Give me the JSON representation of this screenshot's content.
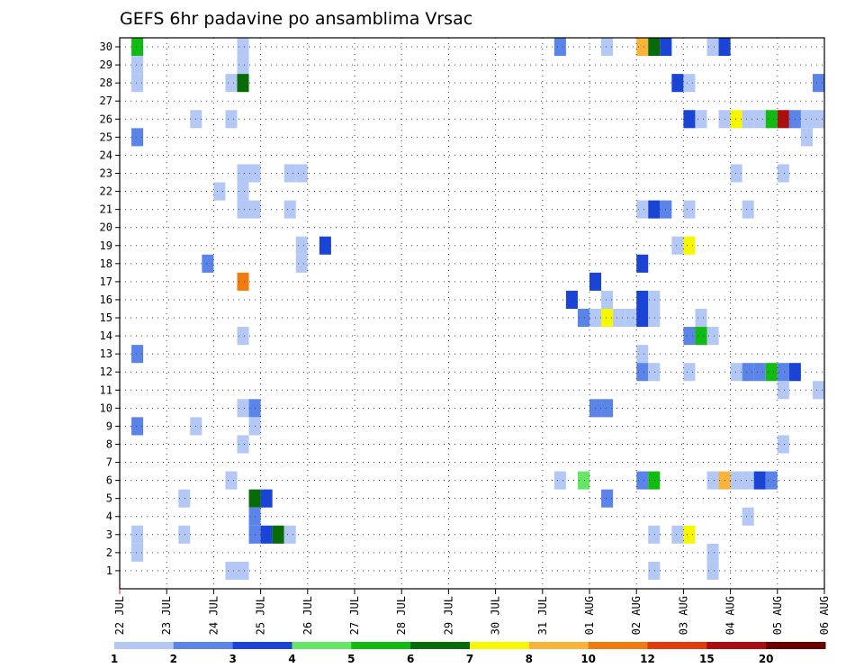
{
  "chart_data": {
    "type": "heatmap",
    "title": "GEFS 6hr padavine po ansamblima Vrsac",
    "xlabel": "",
    "ylabel": "",
    "x_tick_labels": [
      "22 JUL",
      "23 JUL",
      "24 JUL",
      "25 JUL",
      "26 JUL",
      "27 JUL",
      "28 JUL",
      "29 JUL",
      "30 JUL",
      "31 JUL",
      "01 AUG",
      "02 AUG",
      "03 AUG",
      "04 AUG",
      "05 AUG",
      "06 AUG"
    ],
    "x_steps_per_day": 4,
    "x_steps_total": 60,
    "y_tick_labels": [
      "1",
      "2",
      "3",
      "4",
      "5",
      "6",
      "7",
      "8",
      "9",
      "10",
      "11",
      "12",
      "13",
      "14",
      "15",
      "16",
      "17",
      "18",
      "19",
      "20",
      "21",
      "22",
      "23",
      "24",
      "25",
      "26",
      "27",
      "28",
      "29",
      "30"
    ],
    "ylim": [
      0.5,
      30.5
    ],
    "grid": true,
    "colorbar": {
      "labels": [
        "1",
        "2",
        "3",
        "4",
        "5",
        "6",
        "7",
        "8",
        "10",
        "12",
        "15",
        "20"
      ],
      "colors": [
        "#b3c8f5",
        "#5b84e8",
        "#1a44d6",
        "#66e666",
        "#11bb11",
        "#076b07",
        "#f7f700",
        "#f8b43a",
        "#f07c10",
        "#e23a0a",
        "#aa0e0e",
        "#6a0000"
      ]
    },
    "cells": [
      [
        2,
        30,
        5
      ],
      [
        2,
        29,
        1
      ],
      [
        2,
        28,
        1
      ],
      [
        2,
        25,
        2
      ],
      [
        2,
        13,
        2
      ],
      [
        2,
        9,
        2
      ],
      [
        2,
        3,
        1
      ],
      [
        2,
        2,
        1
      ],
      [
        6,
        5,
        1
      ],
      [
        6,
        3,
        1
      ],
      [
        7,
        26,
        1
      ],
      [
        7,
        9,
        1
      ],
      [
        8,
        18,
        2
      ],
      [
        9,
        22,
        1
      ],
      [
        10,
        28,
        1
      ],
      [
        10,
        26,
        1
      ],
      [
        10,
        6,
        1
      ],
      [
        10,
        1,
        1
      ],
      [
        11,
        30,
        1
      ],
      [
        11,
        29,
        1
      ],
      [
        11,
        28,
        6
      ],
      [
        11,
        23,
        1
      ],
      [
        11,
        22,
        1
      ],
      [
        11,
        21,
        1
      ],
      [
        11,
        17,
        9
      ],
      [
        11,
        14,
        1
      ],
      [
        11,
        10,
        1
      ],
      [
        11,
        8,
        1
      ],
      [
        11,
        1,
        1
      ],
      [
        12,
        23,
        1
      ],
      [
        12,
        21,
        1
      ],
      [
        12,
        10,
        2
      ],
      [
        12,
        9,
        1
      ],
      [
        12,
        5,
        6
      ],
      [
        12,
        4,
        2
      ],
      [
        12,
        3,
        2
      ],
      [
        13,
        5,
        3
      ],
      [
        13,
        3,
        3
      ],
      [
        14,
        3,
        6
      ],
      [
        15,
        23,
        1
      ],
      [
        15,
        21,
        1
      ],
      [
        15,
        3,
        1
      ],
      [
        16,
        23,
        1
      ],
      [
        16,
        19,
        1
      ],
      [
        16,
        18,
        1
      ],
      [
        18,
        19,
        3
      ],
      [
        38,
        30,
        2
      ],
      [
        38,
        6,
        1
      ],
      [
        39,
        16,
        3
      ],
      [
        40,
        15,
        2
      ],
      [
        40,
        6,
        4
      ],
      [
        41,
        17,
        3
      ],
      [
        41,
        15,
        1
      ],
      [
        41,
        10,
        2
      ],
      [
        42,
        30,
        1
      ],
      [
        42,
        16,
        1
      ],
      [
        42,
        15,
        7
      ],
      [
        42,
        10,
        2
      ],
      [
        42,
        5,
        2
      ],
      [
        43,
        15,
        1
      ],
      [
        44,
        15,
        1
      ],
      [
        45,
        30,
        8
      ],
      [
        45,
        21,
        1
      ],
      [
        45,
        18,
        3
      ],
      [
        45,
        16,
        3
      ],
      [
        45,
        15,
        3
      ],
      [
        45,
        13,
        1
      ],
      [
        45,
        12,
        2
      ],
      [
        45,
        6,
        2
      ],
      [
        46,
        30,
        6
      ],
      [
        46,
        21,
        3
      ],
      [
        46,
        16,
        1
      ],
      [
        46,
        15,
        1
      ],
      [
        46,
        12,
        1
      ],
      [
        46,
        6,
        5
      ],
      [
        46,
        3,
        1
      ],
      [
        46,
        1,
        1
      ],
      [
        47,
        30,
        3
      ],
      [
        47,
        21,
        2
      ],
      [
        48,
        28,
        3
      ],
      [
        48,
        19,
        1
      ],
      [
        48,
        3,
        1
      ],
      [
        49,
        28,
        1
      ],
      [
        49,
        26,
        3
      ],
      [
        49,
        21,
        1
      ],
      [
        49,
        19,
        7
      ],
      [
        49,
        14,
        2
      ],
      [
        49,
        12,
        1
      ],
      [
        49,
        3,
        7
      ],
      [
        50,
        26,
        1
      ],
      [
        50,
        15,
        1
      ],
      [
        50,
        14,
        5
      ],
      [
        51,
        30,
        1
      ],
      [
        51,
        14,
        1
      ],
      [
        51,
        6,
        1
      ],
      [
        51,
        2,
        1
      ],
      [
        51,
        1,
        1
      ],
      [
        52,
        30,
        3
      ],
      [
        52,
        26,
        1
      ],
      [
        52,
        6,
        8
      ],
      [
        53,
        26,
        7
      ],
      [
        53,
        23,
        1
      ],
      [
        53,
        12,
        1
      ],
      [
        53,
        6,
        1
      ],
      [
        54,
        26,
        1
      ],
      [
        54,
        21,
        1
      ],
      [
        54,
        12,
        2
      ],
      [
        54,
        6,
        1
      ],
      [
        54,
        4,
        1
      ],
      [
        55,
        26,
        1
      ],
      [
        55,
        12,
        2
      ],
      [
        55,
        6,
        3
      ],
      [
        56,
        26,
        5
      ],
      [
        56,
        12,
        5
      ],
      [
        56,
        6,
        2
      ],
      [
        57,
        26,
        11
      ],
      [
        57,
        23,
        1
      ],
      [
        57,
        12,
        2
      ],
      [
        57,
        11,
        1
      ],
      [
        57,
        8,
        1
      ],
      [
        58,
        26,
        2
      ],
      [
        58,
        12,
        3
      ],
      [
        59,
        26,
        1
      ],
      [
        59,
        25,
        1
      ],
      [
        60,
        28,
        2
      ],
      [
        60,
        26,
        1
      ],
      [
        60,
        11,
        1
      ]
    ]
  }
}
